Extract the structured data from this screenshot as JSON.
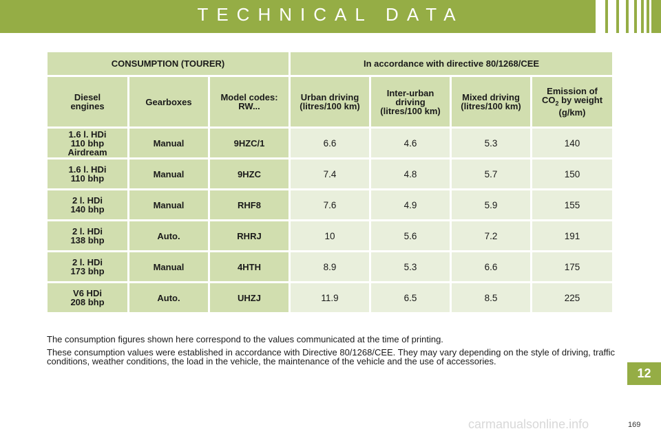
{
  "header": {
    "title": "TECHNICAL DATA"
  },
  "table": {
    "top_headers": [
      "CONSUMPTION (TOURER)",
      "In accordance with directive 80/1268/CEE"
    ],
    "columns": {
      "engines": [
        "Diesel",
        "engines"
      ],
      "gearboxes": "Gearboxes",
      "model_codes": [
        "Model codes:",
        "RW..."
      ],
      "urban": [
        "Urban driving",
        "(litres/100 km)"
      ],
      "inter_urban": [
        "Inter-urban",
        "driving",
        "(litres/100 km)"
      ],
      "mixed": [
        "Mixed driving",
        "(litres/100 km)"
      ],
      "emission": {
        "line1": "Emission of",
        "co": "CO",
        "sub": "2",
        "rest": " by weight",
        "line3": "(g/km)"
      }
    },
    "rows": [
      {
        "engine": [
          "1.6 l. HDi",
          "110 bhp",
          "Airdream"
        ],
        "gearbox": "Manual",
        "model": "9HZC/1",
        "urban": "6.6",
        "inter": "4.6",
        "mixed": "5.3",
        "co2": "140"
      },
      {
        "engine": [
          "1.6 l. HDi",
          "110 bhp"
        ],
        "gearbox": "Manual",
        "model": "9HZC",
        "urban": "7.4",
        "inter": "4.8",
        "mixed": "5.7",
        "co2": "150"
      },
      {
        "engine": [
          "2 l. HDi",
          "140 bhp"
        ],
        "gearbox": "Manual",
        "model": "RHF8",
        "urban": "7.6",
        "inter": "4.9",
        "mixed": "5.9",
        "co2": "155"
      },
      {
        "engine": [
          "2 l. HDi",
          "138 bhp"
        ],
        "gearbox": "Auto.",
        "model": "RHRJ",
        "urban": "10",
        "inter": "5.6",
        "mixed": "7.2",
        "co2": "191"
      },
      {
        "engine": [
          "2 l. HDi",
          "173 bhp"
        ],
        "gearbox": "Manual",
        "model": "4HTH",
        "urban": "8.9",
        "inter": "5.3",
        "mixed": "6.6",
        "co2": "175"
      },
      {
        "engine": [
          "V6 HDi",
          "208 bhp"
        ],
        "gearbox": "Auto.",
        "model": "UHZJ",
        "urban": "11.9",
        "inter": "6.5",
        "mixed": "8.5",
        "co2": "225"
      }
    ]
  },
  "notes": [
    "The consumption figures shown here correspond to the values communicated at the time of printing.",
    "These consumption values were established in accordance with Directive 80/1268/CEE. They may vary depending on the style of driving, traffic conditions, weather conditions, the load in the vehicle, the maintenance of the vehicle and the use of accessories."
  ],
  "chapter_tab": "12",
  "page_number": "169",
  "watermark": "carmanualsonline.info",
  "colors": {
    "accent_green": "#95ad45",
    "header_cell": "#d1deaf",
    "value_cell": "#e9efdc"
  }
}
